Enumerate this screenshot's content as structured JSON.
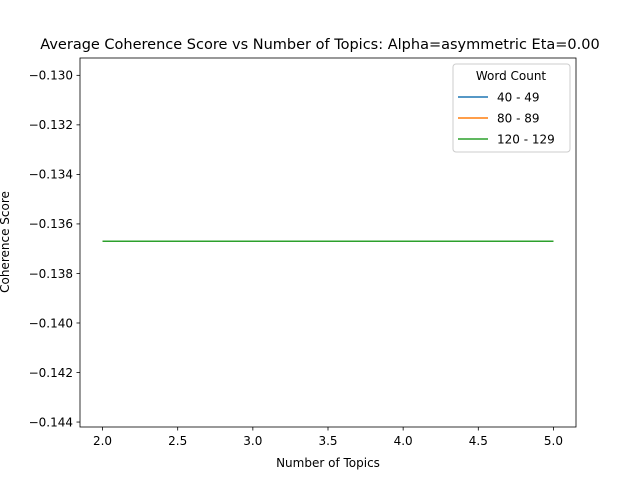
{
  "chart_data": {
    "type": "line",
    "title": "Average Coherence Score vs Number of Topics: Alpha=asymmetric Eta=0.00",
    "xlabel": "Number of Topics",
    "ylabel": "Coherence Score",
    "xlim": [
      1.85,
      5.15
    ],
    "ylim": [
      -0.1442,
      -0.1293
    ],
    "xticks": [
      2.0,
      2.5,
      3.0,
      3.5,
      4.0,
      4.5,
      5.0
    ],
    "xtick_labels": [
      "2.0",
      "2.5",
      "3.0",
      "3.5",
      "4.0",
      "4.5",
      "5.0"
    ],
    "yticks": [
      -0.13,
      -0.132,
      -0.134,
      -0.136,
      -0.138,
      -0.14,
      -0.142,
      -0.144
    ],
    "ytick_labels": [
      "−0.130",
      "−0.132",
      "−0.134",
      "−0.136",
      "−0.138",
      "−0.140",
      "−0.142",
      "−0.144"
    ],
    "grid": false,
    "legend": {
      "title": "Word Count",
      "placement": "top-right"
    },
    "series": [
      {
        "name": "40 - 49",
        "color": "#1f77b4",
        "x": [
          2,
          3,
          4,
          5
        ],
        "y": [
          -0.1367,
          -0.1367,
          -0.1367,
          -0.1367
        ]
      },
      {
        "name": "80 - 89",
        "color": "#ff7f0e",
        "x": [
          2,
          3,
          4,
          5
        ],
        "y": [
          -0.1367,
          -0.1367,
          -0.1367,
          -0.1367
        ]
      },
      {
        "name": "120 - 129",
        "color": "#2ca02c",
        "x": [
          2,
          3,
          4,
          5
        ],
        "y": [
          -0.1367,
          -0.1367,
          -0.1367,
          -0.1367
        ]
      }
    ]
  }
}
